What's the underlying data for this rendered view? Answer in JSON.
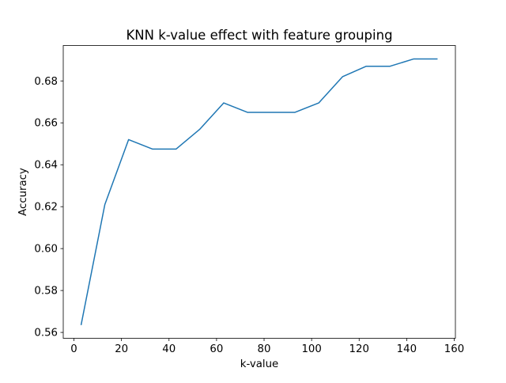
{
  "figure": {
    "background": "#ffffff",
    "axis_color": "#000000"
  },
  "chart_data": {
    "type": "line",
    "title": "KNN k-value effect with feature grouping",
    "xlabel": "k-value",
    "ylabel": "Accuracy",
    "x": [
      3,
      13,
      23,
      33,
      43,
      53,
      63,
      73,
      83,
      93,
      103,
      113,
      123,
      133,
      143,
      153
    ],
    "series": [
      {
        "name": "Accuracy",
        "color": "#1f77b4",
        "values": [
          0.5635,
          0.621,
          0.652,
          0.6475,
          0.6475,
          0.657,
          0.6695,
          0.665,
          0.665,
          0.665,
          0.6695,
          0.682,
          0.687,
          0.687,
          0.6905,
          0.6905
        ]
      }
    ],
    "xlim": [
      -4.5,
      160.5
    ],
    "ylim": [
      0.5572,
      0.6969
    ],
    "xticks": {
      "values": [
        0,
        20,
        40,
        60,
        80,
        100,
        120,
        140,
        160
      ],
      "labels": [
        "0",
        "20",
        "40",
        "60",
        "80",
        "100",
        "120",
        "140",
        "160"
      ]
    },
    "yticks": {
      "values": [
        0.56,
        0.58,
        0.6,
        0.62,
        0.64,
        0.66,
        0.68
      ],
      "labels": [
        "0.56",
        "0.58",
        "0.60",
        "0.62",
        "0.64",
        "0.66",
        "0.68"
      ]
    },
    "grid": false,
    "legend_position": "none",
    "line_color": "#1f77b4"
  }
}
